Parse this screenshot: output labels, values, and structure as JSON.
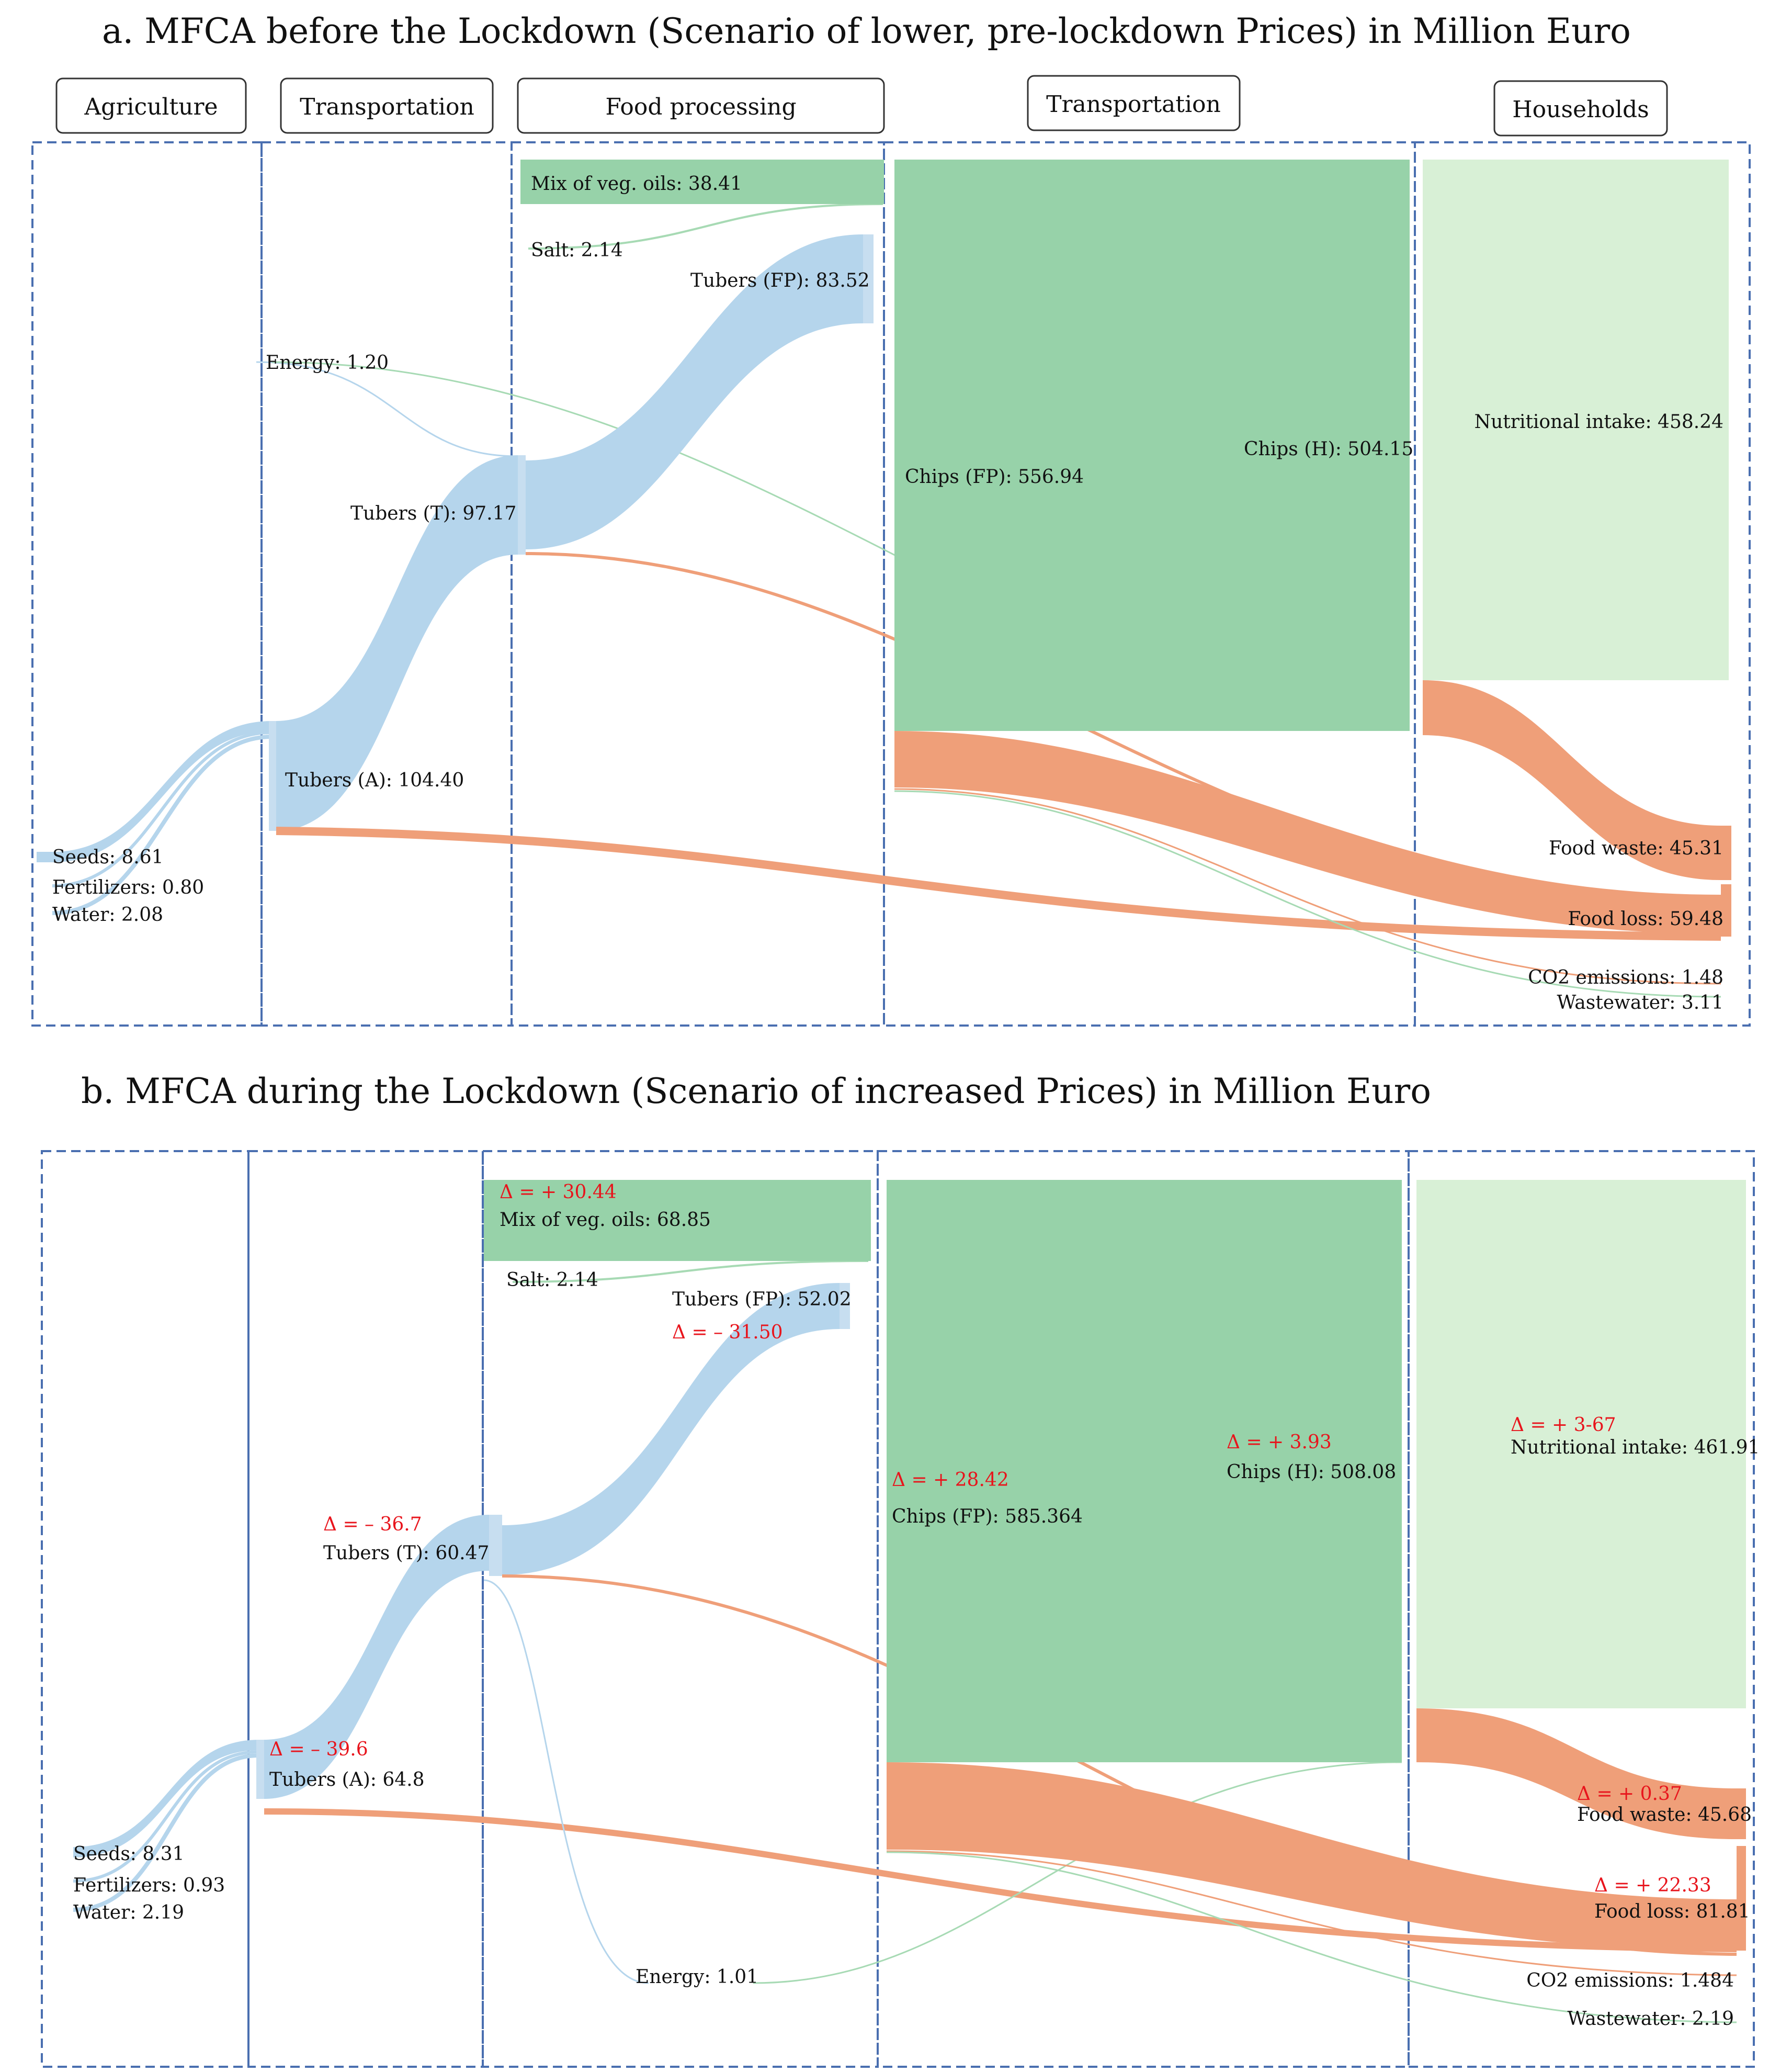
{
  "panel_a": {
    "title": "a. MFCA before the Lockdown (Scenario of lower, pre-lockdown Prices) in Million Euro",
    "headers": [
      "Agriculture",
      "Transportation",
      "Food processing",
      "Transportation",
      "Households"
    ],
    "labels": {
      "seeds": "Seeds: 8.61",
      "fertilizers": "Fertilizers: 0.80",
      "water": "Water: 2.08",
      "tubers_a": "Tubers (A): 104.40",
      "energy": "Energy: 1.20",
      "tubers_t": "Tubers (T): 97.17",
      "mix_oils": "Mix of veg. oils: 38.41",
      "salt": "Salt: 2.14",
      "tubers_fp": "Tubers (FP): 83.52",
      "chips_fp": "Chips (FP): 556.94",
      "chips_h": "Chips (H): 504.15",
      "nutritional": "Nutritional intake: 458.24",
      "food_waste": "Food waste: 45.31",
      "food_loss": "Food loss: 59.48",
      "co2": "CO2 emissions: 1.48",
      "wastewater": "Wastewater: 3.11"
    }
  },
  "panel_b": {
    "title": "b. MFCA during the Lockdown (Scenario of increased Prices) in Million Euro",
    "labels": {
      "seeds": "Seeds: 8.31",
      "fertilizers": "Fertilizers: 0.93",
      "water": "Water: 2.19",
      "tubers_a": "Tubers (A): 64.8",
      "tubers_t": "Tubers (T): 60.47",
      "mix_oils": "Mix of veg. oils: 68.85",
      "salt": "Salt: 2.14",
      "tubers_fp": "Tubers (FP): 52.02",
      "energy": "Energy: 1.01",
      "chips_fp": "Chips (FP): 585.364",
      "chips_h": "Chips (H): 508.08",
      "nutritional": "Nutritional intake: 461.91",
      "food_waste": "Food waste: 45.68",
      "food_loss": "Food loss: 81.81",
      "co2": "CO2 emissions: 1.484",
      "wastewater": "Wastewater: 2.19"
    },
    "deltas": {
      "mix_oils": "Δ = + 30.44",
      "tubers_fp": "Δ = – 31.50",
      "tubers_t": "Δ = – 36.7",
      "tubers_a": "Δ = – 39.6",
      "chips_fp": "Δ = + 28.42",
      "chips_h": "Δ = + 3.93",
      "nutritional": "Δ = + 3-67",
      "food_waste": "Δ = + 0.37",
      "food_loss": "Δ = + 22.33"
    }
  },
  "colors": {
    "tubers": "#b5d5ec",
    "products": "#97d2a9",
    "intake": "#d8f0d6",
    "losses": "#ef9f79",
    "delta": "#e8141c",
    "stage_border": "#4a6fb0"
  }
}
